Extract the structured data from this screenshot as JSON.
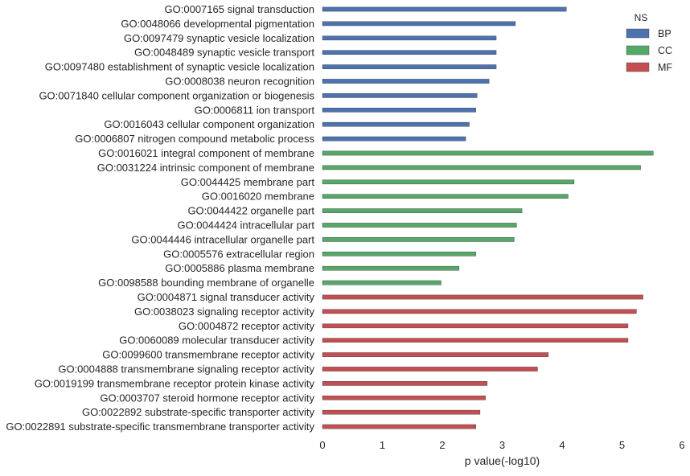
{
  "chart_data": {
    "type": "bar",
    "orientation": "horizontal",
    "xlabel": "p value(-log10)",
    "ylabel": "",
    "xlim": [
      0,
      6
    ],
    "xticks": [
      0,
      1,
      2,
      3,
      4,
      5,
      6
    ],
    "grid": false,
    "legend": {
      "title": "NS",
      "placement": "top-right",
      "entries": [
        {
          "name": "BP",
          "color": "#4c72b0"
        },
        {
          "name": "CC",
          "color": "#55a868"
        },
        {
          "name": "MF",
          "color": "#c44e52"
        }
      ]
    },
    "categories": [
      {
        "label": "GO:0007165 signal transduction",
        "ns": "BP",
        "value": 4.07
      },
      {
        "label": "GO:0048066 developmental pigmentation",
        "ns": "BP",
        "value": 3.22
      },
      {
        "label": "GO:0097479 synaptic vesicle localization",
        "ns": "BP",
        "value": 2.9
      },
      {
        "label": "GO:0048489 synaptic vesicle transport",
        "ns": "BP",
        "value": 2.9
      },
      {
        "label": "GO:0097480 establishment of synaptic vesicle localization",
        "ns": "BP",
        "value": 2.9
      },
      {
        "label": "GO:0008038 neuron recognition",
        "ns": "BP",
        "value": 2.78
      },
      {
        "label": "GO:0071840 cellular component organization or biogenesis",
        "ns": "BP",
        "value": 2.58
      },
      {
        "label": "GO:0006811 ion transport",
        "ns": "BP",
        "value": 2.56
      },
      {
        "label": "GO:0016043 cellular component organization",
        "ns": "BP",
        "value": 2.45
      },
      {
        "label": "GO:0006807 nitrogen compound metabolic process",
        "ns": "BP",
        "value": 2.39
      },
      {
        "label": "GO:0016021 integral component of membrane",
        "ns": "CC",
        "value": 5.52
      },
      {
        "label": "GO:0031224 intrinsic component of membrane",
        "ns": "CC",
        "value": 5.31
      },
      {
        "label": "GO:0044425 membrane part",
        "ns": "CC",
        "value": 4.2
      },
      {
        "label": "GO:0016020 membrane",
        "ns": "CC",
        "value": 4.1
      },
      {
        "label": "GO:0044422 organelle part",
        "ns": "CC",
        "value": 3.33
      },
      {
        "label": "GO:0044424 intracellular part",
        "ns": "CC",
        "value": 3.24
      },
      {
        "label": "GO:0044446 intracellular organelle part",
        "ns": "CC",
        "value": 3.2
      },
      {
        "label": "GO:0005576 extracellular region",
        "ns": "CC",
        "value": 2.56
      },
      {
        "label": "GO:0005886 plasma membrane",
        "ns": "CC",
        "value": 2.28
      },
      {
        "label": "GO:0098588 bounding membrane of organelle",
        "ns": "CC",
        "value": 1.98
      },
      {
        "label": "GO:0004871 signal transducer activity",
        "ns": "MF",
        "value": 5.35
      },
      {
        "label": "GO:0038023 signaling receptor activity",
        "ns": "MF",
        "value": 5.24
      },
      {
        "label": "GO:0004872 receptor activity",
        "ns": "MF",
        "value": 5.1
      },
      {
        "label": "GO:0060089 molecular transducer activity",
        "ns": "MF",
        "value": 5.1
      },
      {
        "label": "GO:0099600 transmembrane receptor activity",
        "ns": "MF",
        "value": 3.77
      },
      {
        "label": "GO:0004888 transmembrane signaling receptor activity",
        "ns": "MF",
        "value": 3.59
      },
      {
        "label": "GO:0019199 transmembrane receptor protein kinase activity",
        "ns": "MF",
        "value": 2.75
      },
      {
        "label": "GO:0003707 steroid hormone receptor activity",
        "ns": "MF",
        "value": 2.72
      },
      {
        "label": "GO:0022892 substrate-specific transporter activity",
        "ns": "MF",
        "value": 2.63
      },
      {
        "label": "GO:0022891 substrate-specific transmembrane transporter activity",
        "ns": "MF",
        "value": 2.56
      }
    ]
  }
}
